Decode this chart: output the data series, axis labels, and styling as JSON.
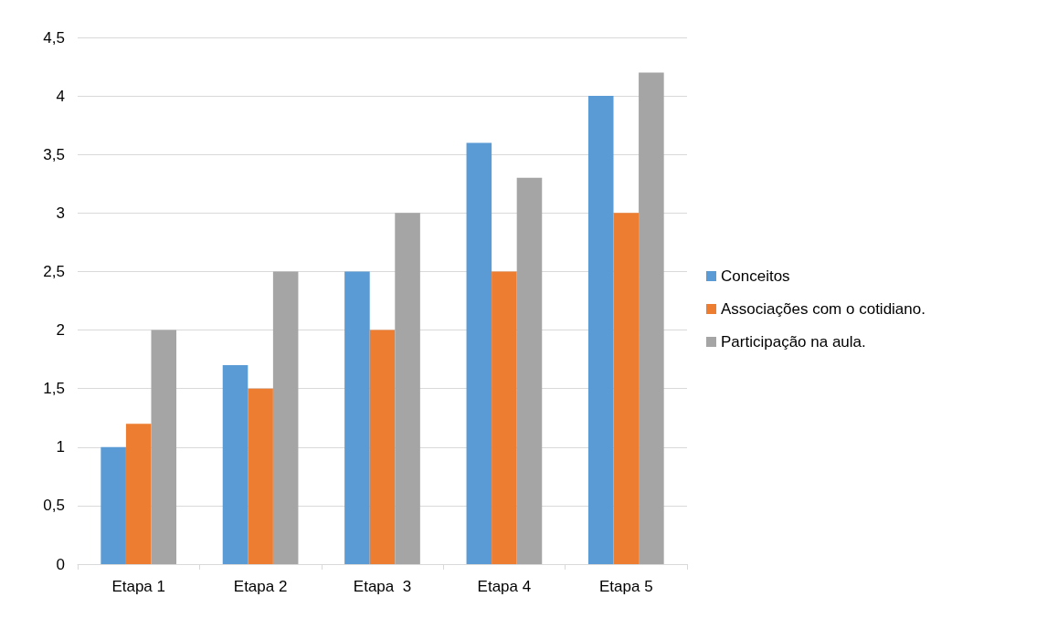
{
  "chart_data": {
    "type": "bar",
    "categories": [
      "Etapa 1",
      "Etapa 2",
      "Etapa  3",
      "Etapa 4",
      "Etapa 5"
    ],
    "series": [
      {
        "name": "Conceitos",
        "color": "#5b9bd5",
        "values": [
          1,
          1.7,
          2.5,
          3.6,
          4
        ]
      },
      {
        "name": "Associações com o cotidiano.",
        "color": "#ed7d31",
        "values": [
          1.2,
          1.5,
          2,
          2.5,
          3
        ]
      },
      {
        "name": "Participação na aula.",
        "color": "#a5a5a5",
        "values": [
          2,
          2.5,
          3,
          3.3,
          4.2
        ]
      }
    ],
    "ylim": [
      0,
      4.5
    ],
    "yticks": [
      0,
      {
        "value": 0.5,
        "label": "0,5"
      },
      1,
      {
        "value": 1.5,
        "label": "1,5"
      },
      2,
      {
        "value": 2.5,
        "label": "2,5"
      },
      3,
      {
        "value": 3.5,
        "label": "3,5"
      },
      4,
      {
        "value": 4.5,
        "label": "4,5"
      }
    ],
    "grid": "y",
    "legend": "right"
  }
}
